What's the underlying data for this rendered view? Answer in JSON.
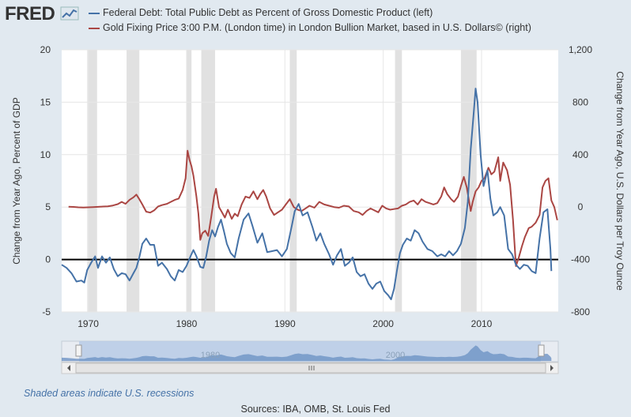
{
  "logo": {
    "text": "FRED",
    "icon": "fred-chart-icon"
  },
  "legend": [
    {
      "label": "Federal Debt: Total Public Debt as Percent of Gross Domestic Product (left)",
      "color": "#4572a7"
    },
    {
      "label": "Gold Fixing Price 3:00 P.M. (London time) in London Bullion Market, based in U.S. Dollars© (right)",
      "color": "#aa4643"
    }
  ],
  "footer": {
    "recession_note": "Shaded areas indicate U.S. recessions",
    "sources": "Sources: IBA, OMB, St. Louis Fed"
  },
  "navigator": {
    "labels": [
      "1980",
      "2000"
    ],
    "handle_icon": "scroll-grip-icon"
  },
  "chart_data": {
    "type": "line",
    "ylabel": "Change from Year Ago, Percent of GDP",
    "y2label": "Change from Year Ago, U.S. Dollars per Troy Ounce",
    "xlim": [
      1967.3,
      2017.8
    ],
    "ylim": [
      -5,
      20
    ],
    "y2lim": [
      -800,
      1200
    ],
    "xticks": [
      1970,
      1980,
      1990,
      2000,
      2010
    ],
    "yticks": [
      -5,
      0,
      5,
      10,
      15,
      20
    ],
    "y2ticks": [
      -800,
      -400,
      0,
      400,
      800,
      1200
    ],
    "zero_line": 0,
    "grid": true,
    "recessions": [
      [
        1969.9,
        1970.9
      ],
      [
        1973.9,
        1975.2
      ],
      [
        1980.0,
        1980.5
      ],
      [
        1981.5,
        1982.9
      ],
      [
        1990.5,
        1991.2
      ],
      [
        2001.2,
        2001.9
      ],
      [
        2007.9,
        2009.5
      ]
    ],
    "series": [
      {
        "name": "Federal Debt: Total Public Debt as Percent of Gross Domestic Product (left)",
        "axis": "left",
        "color": "#4572a7",
        "points": [
          [
            1967.3,
            -0.5
          ],
          [
            1967.8,
            -0.8
          ],
          [
            1968.3,
            -1.3
          ],
          [
            1968.8,
            -2.1
          ],
          [
            1969.3,
            -2.0
          ],
          [
            1969.6,
            -2.2
          ],
          [
            1969.9,
            -1.0
          ],
          [
            1970.3,
            -0.3
          ],
          [
            1970.7,
            0.3
          ],
          [
            1971.0,
            -0.8
          ],
          [
            1971.4,
            0.3
          ],
          [
            1971.8,
            -0.3
          ],
          [
            1972.2,
            0.2
          ],
          [
            1972.6,
            -0.9
          ],
          [
            1973.0,
            -1.6
          ],
          [
            1973.4,
            -1.3
          ],
          [
            1973.8,
            -1.4
          ],
          [
            1974.2,
            -2.0
          ],
          [
            1974.6,
            -1.3
          ],
          [
            1974.9,
            -0.8
          ],
          [
            1975.2,
            0.2
          ],
          [
            1975.5,
            1.5
          ],
          [
            1975.9,
            2.0
          ],
          [
            1976.3,
            1.4
          ],
          [
            1976.7,
            1.4
          ],
          [
            1977.1,
            -0.6
          ],
          [
            1977.5,
            -0.3
          ],
          [
            1978.0,
            -0.9
          ],
          [
            1978.4,
            -1.6
          ],
          [
            1978.8,
            -2.0
          ],
          [
            1979.2,
            -1.0
          ],
          [
            1979.6,
            -1.2
          ],
          [
            1980.0,
            -0.6
          ],
          [
            1980.4,
            0.3
          ],
          [
            1980.7,
            0.9
          ],
          [
            1981.0,
            0.3
          ],
          [
            1981.4,
            -0.7
          ],
          [
            1981.7,
            -0.8
          ],
          [
            1982.0,
            0.3
          ],
          [
            1982.3,
            1.8
          ],
          [
            1982.6,
            2.8
          ],
          [
            1982.9,
            2.2
          ],
          [
            1983.2,
            3.1
          ],
          [
            1983.5,
            3.8
          ],
          [
            1983.8,
            2.7
          ],
          [
            1984.1,
            1.5
          ],
          [
            1984.5,
            0.6
          ],
          [
            1984.9,
            0.2
          ],
          [
            1985.3,
            2.0
          ],
          [
            1985.8,
            3.8
          ],
          [
            1986.3,
            4.4
          ],
          [
            1986.7,
            3.2
          ],
          [
            1987.2,
            1.6
          ],
          [
            1987.7,
            2.5
          ],
          [
            1988.2,
            0.7
          ],
          [
            1988.7,
            0.8
          ],
          [
            1989.2,
            0.9
          ],
          [
            1989.7,
            0.3
          ],
          [
            1990.2,
            1.0
          ],
          [
            1990.7,
            3.2
          ],
          [
            1991.0,
            4.6
          ],
          [
            1991.4,
            5.3
          ],
          [
            1991.8,
            4.2
          ],
          [
            1992.3,
            4.5
          ],
          [
            1992.8,
            3.1
          ],
          [
            1993.2,
            1.8
          ],
          [
            1993.6,
            2.5
          ],
          [
            1994.0,
            1.5
          ],
          [
            1994.5,
            0.5
          ],
          [
            1994.9,
            -0.5
          ],
          [
            1995.3,
            0.4
          ],
          [
            1995.7,
            1.0
          ],
          [
            1996.1,
            -0.6
          ],
          [
            1996.5,
            -0.3
          ],
          [
            1996.9,
            0.2
          ],
          [
            1997.3,
            -1.2
          ],
          [
            1997.7,
            -1.6
          ],
          [
            1998.1,
            -1.4
          ],
          [
            1998.5,
            -2.3
          ],
          [
            1998.9,
            -2.8
          ],
          [
            1999.3,
            -2.3
          ],
          [
            1999.7,
            -2.1
          ],
          [
            2000.1,
            -3.0
          ],
          [
            2000.5,
            -3.4
          ],
          [
            2000.8,
            -3.8
          ],
          [
            2001.1,
            -2.8
          ],
          [
            2001.4,
            -1.0
          ],
          [
            2001.7,
            0.6
          ],
          [
            2002.0,
            1.4
          ],
          [
            2002.4,
            2.0
          ],
          [
            2002.8,
            1.8
          ],
          [
            2003.2,
            2.8
          ],
          [
            2003.6,
            2.5
          ],
          [
            2004.0,
            1.7
          ],
          [
            2004.5,
            1.0
          ],
          [
            2005.0,
            0.8
          ],
          [
            2005.5,
            0.3
          ],
          [
            2005.9,
            0.5
          ],
          [
            2006.3,
            0.3
          ],
          [
            2006.7,
            0.8
          ],
          [
            2007.1,
            0.4
          ],
          [
            2007.5,
            0.8
          ],
          [
            2007.9,
            1.5
          ],
          [
            2008.3,
            3.0
          ],
          [
            2008.6,
            5.5
          ],
          [
            2008.9,
            10.5
          ],
          [
            2009.2,
            14.0
          ],
          [
            2009.4,
            16.3
          ],
          [
            2009.6,
            15.0
          ],
          [
            2009.9,
            10.0
          ],
          [
            2010.2,
            7.0
          ],
          [
            2010.6,
            8.5
          ],
          [
            2010.9,
            5.8
          ],
          [
            2011.2,
            4.2
          ],
          [
            2011.6,
            4.5
          ],
          [
            2011.9,
            5.0
          ],
          [
            2012.3,
            4.2
          ],
          [
            2012.7,
            1.0
          ],
          [
            2013.1,
            0.5
          ],
          [
            2013.5,
            -0.5
          ],
          [
            2013.9,
            -0.9
          ],
          [
            2014.3,
            -0.5
          ],
          [
            2014.7,
            -0.6
          ],
          [
            2015.1,
            -1.1
          ],
          [
            2015.5,
            -1.3
          ],
          [
            2015.9,
            2.0
          ],
          [
            2016.3,
            4.5
          ],
          [
            2016.7,
            4.8
          ],
          [
            2017.0,
            1.0
          ],
          [
            2017.1,
            -1.1
          ]
        ]
      },
      {
        "name": "Gold Fixing Price 3:00 P.M. (London time) in London Bullion Market, based in U.S. Dollars© (right)",
        "axis": "right",
        "color": "#aa4643",
        "points": [
          [
            1968.0,
            3
          ],
          [
            1968.5,
            1
          ],
          [
            1969.0,
            -2
          ],
          [
            1969.5,
            -3
          ],
          [
            1970.0,
            -2
          ],
          [
            1970.5,
            0
          ],
          [
            1971.0,
            2
          ],
          [
            1971.5,
            4
          ],
          [
            1972.0,
            6
          ],
          [
            1972.5,
            12
          ],
          [
            1973.0,
            22
          ],
          [
            1973.4,
            40
          ],
          [
            1973.8,
            25
          ],
          [
            1974.2,
            55
          ],
          [
            1974.6,
            75
          ],
          [
            1974.9,
            95
          ],
          [
            1975.2,
            60
          ],
          [
            1975.5,
            20
          ],
          [
            1975.9,
            -35
          ],
          [
            1976.3,
            -42
          ],
          [
            1976.7,
            -25
          ],
          [
            1977.1,
            5
          ],
          [
            1977.5,
            15
          ],
          [
            1978.0,
            25
          ],
          [
            1978.4,
            40
          ],
          [
            1978.8,
            55
          ],
          [
            1979.2,
            65
          ],
          [
            1979.6,
            130
          ],
          [
            1979.9,
            220
          ],
          [
            1980.1,
            430
          ],
          [
            1980.3,
            360
          ],
          [
            1980.5,
            310
          ],
          [
            1980.7,
            240
          ],
          [
            1981.0,
            80
          ],
          [
            1981.2,
            -50
          ],
          [
            1981.4,
            -250
          ],
          [
            1981.6,
            -200
          ],
          [
            1981.9,
            -180
          ],
          [
            1982.2,
            -220
          ],
          [
            1982.5,
            -80
          ],
          [
            1982.8,
            80
          ],
          [
            1983.0,
            140
          ],
          [
            1983.3,
            0
          ],
          [
            1983.6,
            -40
          ],
          [
            1983.9,
            -80
          ],
          [
            1984.2,
            -20
          ],
          [
            1984.6,
            -90
          ],
          [
            1984.9,
            -50
          ],
          [
            1985.2,
            -70
          ],
          [
            1985.6,
            20
          ],
          [
            1986.0,
            80
          ],
          [
            1986.4,
            70
          ],
          [
            1986.8,
            120
          ],
          [
            1987.2,
            60
          ],
          [
            1987.5,
            100
          ],
          [
            1987.8,
            130
          ],
          [
            1988.1,
            80
          ],
          [
            1988.5,
            -10
          ],
          [
            1988.9,
            -60
          ],
          [
            1989.3,
            -40
          ],
          [
            1989.7,
            -20
          ],
          [
            1990.1,
            20
          ],
          [
            1990.5,
            60
          ],
          [
            1990.9,
            0
          ],
          [
            1991.3,
            -20
          ],
          [
            1991.7,
            -30
          ],
          [
            1992.1,
            -10
          ],
          [
            1992.5,
            10
          ],
          [
            1993.0,
            -5
          ],
          [
            1993.5,
            40
          ],
          [
            1994.0,
            20
          ],
          [
            1994.5,
            10
          ],
          [
            1995.0,
            0
          ],
          [
            1995.5,
            -5
          ],
          [
            1996.0,
            10
          ],
          [
            1996.5,
            5
          ],
          [
            1997.0,
            -30
          ],
          [
            1997.5,
            -40
          ],
          [
            1997.9,
            -60
          ],
          [
            1998.3,
            -30
          ],
          [
            1998.7,
            -10
          ],
          [
            1999.1,
            -25
          ],
          [
            1999.5,
            -40
          ],
          [
            1999.9,
            10
          ],
          [
            2000.3,
            -10
          ],
          [
            2000.7,
            -20
          ],
          [
            2001.1,
            -15
          ],
          [
            2001.5,
            -10
          ],
          [
            2001.9,
            10
          ],
          [
            2002.3,
            20
          ],
          [
            2002.7,
            40
          ],
          [
            2003.1,
            50
          ],
          [
            2003.5,
            20
          ],
          [
            2003.9,
            60
          ],
          [
            2004.3,
            40
          ],
          [
            2004.7,
            30
          ],
          [
            2005.1,
            20
          ],
          [
            2005.5,
            30
          ],
          [
            2005.9,
            80
          ],
          [
            2006.2,
            150
          ],
          [
            2006.5,
            100
          ],
          [
            2006.9,
            60
          ],
          [
            2007.2,
            40
          ],
          [
            2007.6,
            80
          ],
          [
            2007.9,
            160
          ],
          [
            2008.2,
            230
          ],
          [
            2008.5,
            150
          ],
          [
            2008.9,
            -30
          ],
          [
            2009.1,
            40
          ],
          [
            2009.4,
            120
          ],
          [
            2009.7,
            150
          ],
          [
            2010.0,
            200
          ],
          [
            2010.3,
            220
          ],
          [
            2010.7,
            300
          ],
          [
            2011.0,
            250
          ],
          [
            2011.3,
            270
          ],
          [
            2011.7,
            380
          ],
          [
            2011.9,
            200
          ],
          [
            2012.2,
            340
          ],
          [
            2012.6,
            280
          ],
          [
            2012.9,
            170
          ],
          [
            2013.2,
            -100
          ],
          [
            2013.5,
            -450
          ],
          [
            2013.8,
            -380
          ],
          [
            2014.1,
            -300
          ],
          [
            2014.4,
            -230
          ],
          [
            2014.8,
            -160
          ],
          [
            2015.1,
            -150
          ],
          [
            2015.5,
            -120
          ],
          [
            2015.9,
            -60
          ],
          [
            2016.2,
            150
          ],
          [
            2016.5,
            200
          ],
          [
            2016.8,
            220
          ],
          [
            2017.1,
            50
          ],
          [
            2017.4,
            0
          ],
          [
            2017.7,
            -100
          ]
        ]
      }
    ]
  }
}
